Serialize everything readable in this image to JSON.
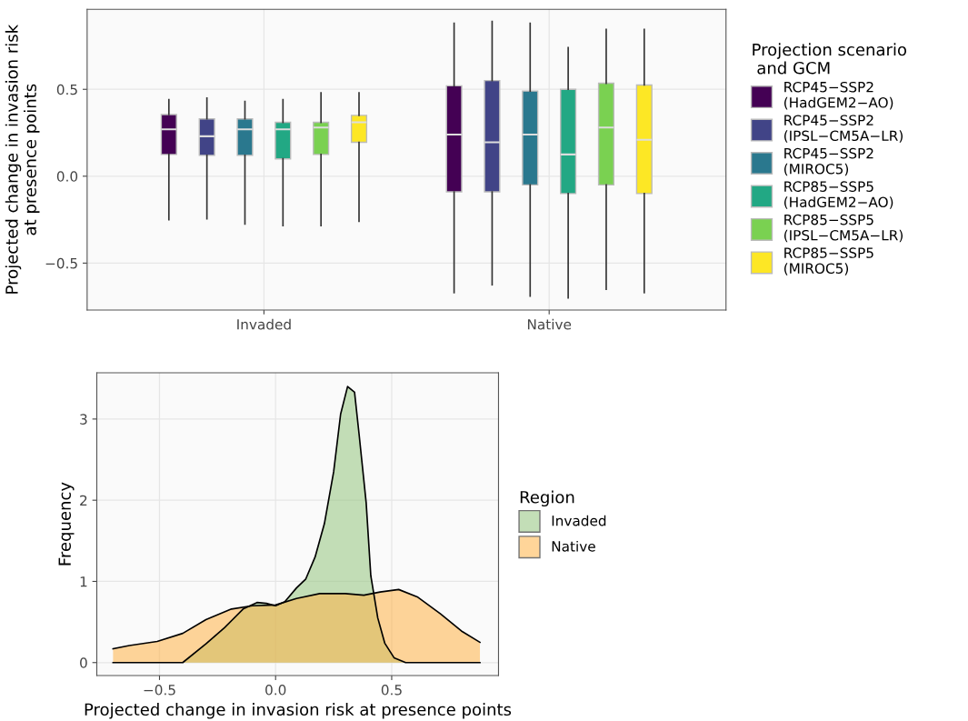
{
  "chart_data": [
    {
      "type": "box",
      "ylabel": "Projected change in invasion risk\nat presence points",
      "legend_title": "Projection scenario\n and GCM",
      "categories": [
        "Invaded",
        "Native"
      ],
      "ylim": [
        -0.77,
        0.96
      ],
      "yticks": [
        {
          "value": -0.5,
          "label": "−0.5"
        },
        {
          "value": 0,
          "label": "0.0"
        },
        0.5
      ],
      "grid": true,
      "legend": "right",
      "series": [
        {
          "name": "RCP45−SSP2\n(HadGEM2−AO)",
          "color": "#440154",
          "boxes": [
            {
              "low": -0.25,
              "q1": 0.125,
              "median": 0.27,
              "q3": 0.355,
              "high": 0.44
            },
            {
              "low": -0.67,
              "q1": -0.09,
              "median": 0.24,
              "q3": 0.52,
              "high": 0.88
            }
          ]
        },
        {
          "name": "RCP45−SSP2\n(IPSL−CM5A−LR)",
          "color": "#414487",
          "boxes": [
            {
              "low": -0.245,
              "q1": 0.12,
              "median": 0.23,
              "q3": 0.33,
              "high": 0.45
            },
            {
              "low": -0.625,
              "q1": -0.09,
              "median": 0.195,
              "q3": 0.55,
              "high": 0.89
            }
          ]
        },
        {
          "name": "RCP45−SSP2\n(MIROC5)",
          "color": "#2a788e",
          "boxes": [
            {
              "low": -0.275,
              "q1": 0.12,
              "median": 0.27,
              "q3": 0.33,
              "high": 0.43
            },
            {
              "low": -0.69,
              "q1": -0.05,
              "median": 0.24,
              "q3": 0.49,
              "high": 0.88
            }
          ]
        },
        {
          "name": "RCP85−SSP5\n(HadGEM2−AO)",
          "color": "#22a884",
          "boxes": [
            {
              "low": -0.285,
              "q1": 0.1,
              "median": 0.27,
              "q3": 0.31,
              "high": 0.44
            },
            {
              "low": -0.7,
              "q1": -0.1,
              "median": 0.125,
              "q3": 0.5,
              "high": 0.74
            }
          ]
        },
        {
          "name": "RCP85−SSP5\n(IPSL−CM5A−LR)",
          "color": "#7ad151",
          "boxes": [
            {
              "low": -0.285,
              "q1": 0.125,
              "median": 0.28,
              "q3": 0.31,
              "high": 0.48
            },
            {
              "low": -0.65,
              "q1": -0.05,
              "median": 0.28,
              "q3": 0.535,
              "high": 0.845
            }
          ]
        },
        {
          "name": "RCP85−SSP5\n(MIROC5)",
          "color": "#fde725",
          "boxes": [
            {
              "low": -0.26,
              "q1": 0.195,
              "median": 0.31,
              "q3": 0.35,
              "high": 0.48
            },
            {
              "low": -0.67,
              "q1": -0.1,
              "median": 0.21,
              "q3": 0.525,
              "high": 0.845
            }
          ]
        }
      ]
    },
    {
      "type": "area",
      "xlabel": "Projected change in invasion risk at presence points",
      "ylabel": "Frequency",
      "legend_title": "Region",
      "xlim": [
        -0.77,
        0.96
      ],
      "ylim": [
        -0.16,
        3.57
      ],
      "xticks": [
        {
          "value": -0.5,
          "label": "−0.5"
        },
        {
          "value": 0,
          "label": "0.0"
        },
        0.5
      ],
      "yticks": [
        0,
        1,
        2,
        3
      ],
      "grid": true,
      "legend": "right",
      "series": [
        {
          "name": "Invaded",
          "color": "#93c47d",
          "x": [
            -0.7,
            -0.4,
            -0.3,
            -0.22,
            -0.14,
            -0.08,
            -0.04,
            0,
            0.04,
            0.09,
            0.13,
            0.17,
            0.21,
            0.25,
            0.28,
            0.31,
            0.34,
            0.36,
            0.39,
            0.41,
            0.44,
            0.47,
            0.51,
            0.56,
            0.88
          ],
          "values": [
            0,
            0,
            0.23,
            0.43,
            0.66,
            0.74,
            0.73,
            0.7,
            0.75,
            0.92,
            1.03,
            1.3,
            1.71,
            2.35,
            3.06,
            3.4,
            3.33,
            2.8,
            1.97,
            1.07,
            0.55,
            0.24,
            0.06,
            0,
            0
          ]
        },
        {
          "name": "Native",
          "color": "#ffb347",
          "x": [
            -0.7,
            -0.63,
            -0.51,
            -0.4,
            -0.3,
            -0.19,
            -0.1,
            0,
            0.09,
            0.19,
            0.3,
            0.38,
            0.45,
            0.53,
            0.61,
            0.71,
            0.8,
            0.88
          ],
          "values": [
            0.17,
            0.21,
            0.26,
            0.36,
            0.53,
            0.66,
            0.7,
            0.71,
            0.79,
            0.85,
            0.85,
            0.83,
            0.87,
            0.9,
            0.81,
            0.6,
            0.39,
            0.25
          ]
        }
      ]
    }
  ]
}
